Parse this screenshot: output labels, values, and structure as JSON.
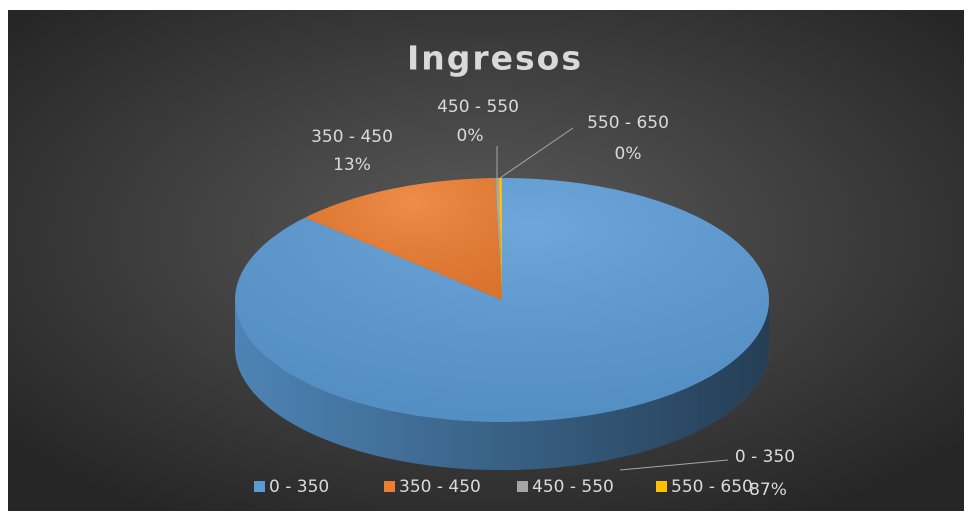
{
  "chart_data": {
    "type": "pie",
    "title": "Ingresos",
    "categories": [
      "0 - 350",
      "350 - 450",
      "450 - 550",
      "550 - 650"
    ],
    "values": [
      86.8,
      12.8,
      0.2,
      0.2
    ],
    "value_labels": [
      "87%",
      "13%",
      "0%",
      "0%"
    ],
    "colors": [
      "#5b9bd5",
      "#ed7d31",
      "#a5a5a5",
      "#ffc000"
    ],
    "legend": "bottom"
  }
}
